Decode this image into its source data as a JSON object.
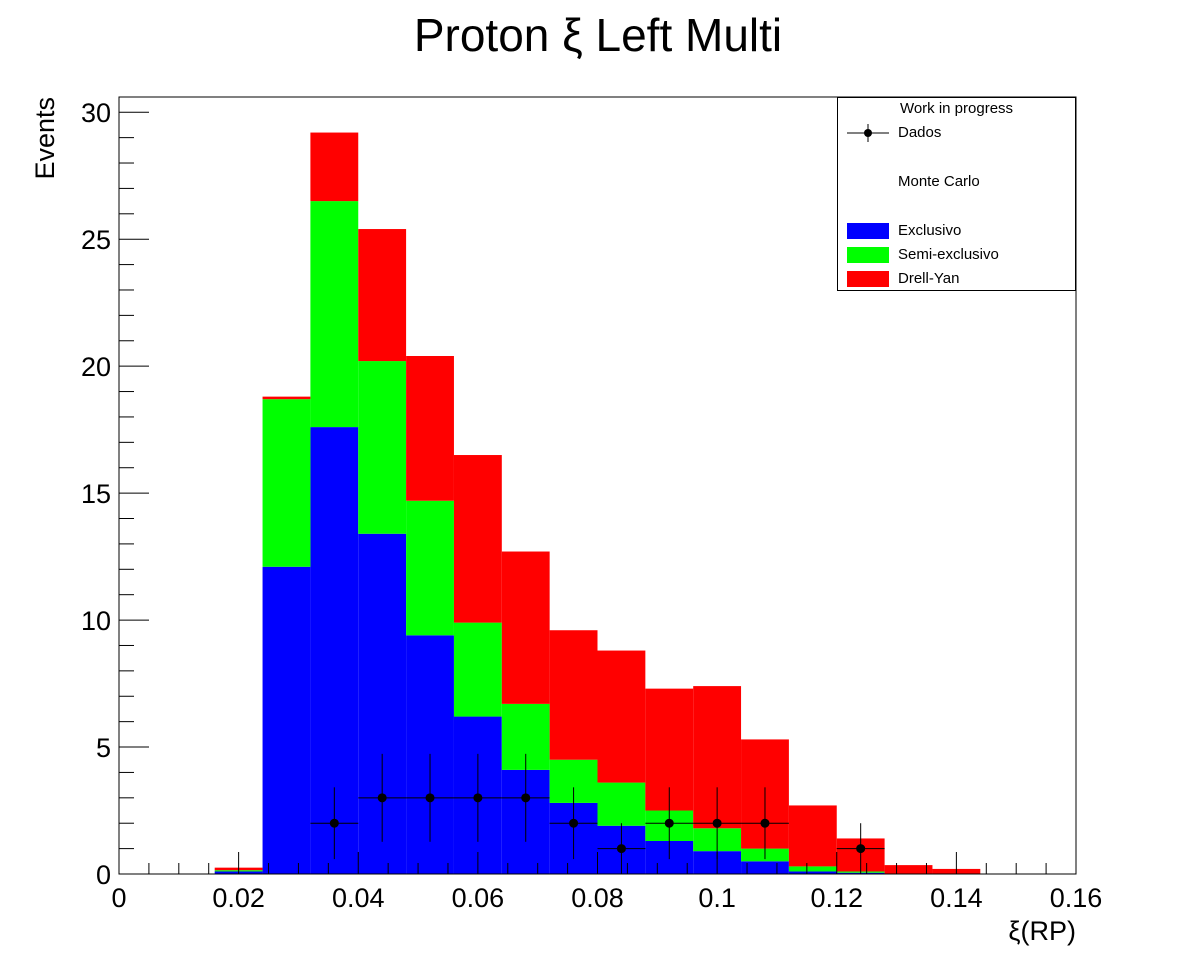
{
  "chart_data": {
    "type": "bar",
    "stacked": true,
    "title": "Proton ξ Left Multi",
    "xlabel": "ξ(RP)",
    "ylabel": "Events",
    "xlim": [
      0,
      0.16
    ],
    "ylim": [
      0,
      30.6
    ],
    "x_ticks": [
      "0",
      "0.02",
      "0.04",
      "0.06",
      "0.08",
      "0.1",
      "0.12",
      "0.14",
      "0.16"
    ],
    "y_ticks": [
      "0",
      "5",
      "10",
      "15",
      "20",
      "25",
      "30"
    ],
    "bin_edges": [
      0.016,
      0.024,
      0.032,
      0.04,
      0.048,
      0.056,
      0.064,
      0.072,
      0.08,
      0.088,
      0.096,
      0.104,
      0.112,
      0.12,
      0.128,
      0.136,
      0.144
    ],
    "series": [
      {
        "name": "Exclusivo",
        "color": "#0000ff",
        "values": [
          0.1,
          12.1,
          17.6,
          13.4,
          9.4,
          6.2,
          4.1,
          2.8,
          1.9,
          1.3,
          0.9,
          0.5,
          0.1,
          0.05,
          0.0,
          0.0
        ]
      },
      {
        "name": "Semi-exclusivo",
        "color": "#00ff00",
        "values": [
          0.05,
          6.6,
          8.9,
          6.8,
          5.3,
          3.7,
          2.6,
          1.7,
          1.7,
          1.2,
          0.9,
          0.5,
          0.2,
          0.05,
          0.0,
          0.0
        ]
      },
      {
        "name": "Drell-Yan",
        "color": "#ff0000",
        "values": [
          0.1,
          0.1,
          2.7,
          5.2,
          5.7,
          6.6,
          6.0,
          5.1,
          5.2,
          4.8,
          5.6,
          4.3,
          2.4,
          1.3,
          0.35,
          0.2
        ]
      }
    ],
    "data_points": {
      "name": "Dados",
      "x": [
        0.036,
        0.044,
        0.052,
        0.06,
        0.068,
        0.076,
        0.084,
        0.092,
        0.1,
        0.108,
        0.124
      ],
      "y": [
        2,
        3,
        3,
        3,
        3,
        2,
        1,
        2,
        2,
        2,
        1
      ]
    },
    "legend": {
      "placement": "top-right",
      "header": "Work in progress",
      "data_label": "Dados",
      "mc_label": "Monte Carlo",
      "entries": [
        "Exclusivo",
        "Semi-exclusivo",
        "Drell-Yan"
      ]
    },
    "grid": false
  }
}
